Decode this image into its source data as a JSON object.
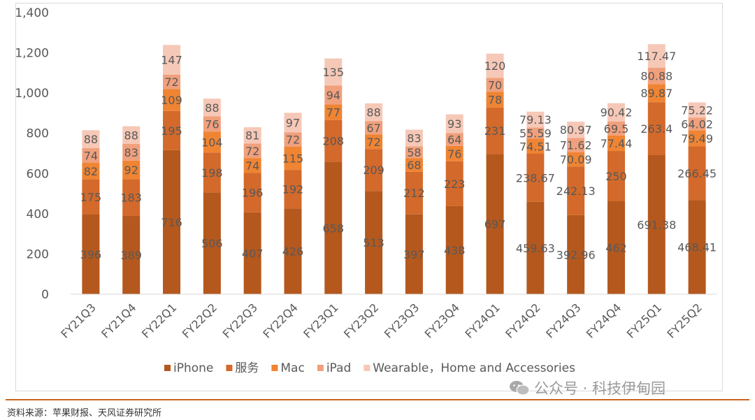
{
  "chart_data": {
    "type": "bar",
    "stacked": true,
    "categories": [
      "FY21Q3",
      "FY21Q4",
      "FY22Q1",
      "FY22Q2",
      "FY22Q3",
      "FY22Q4",
      "FY23Q1",
      "FY23Q2",
      "FY23Q3",
      "FY23Q4",
      "FY24Q1",
      "FY24Q2",
      "FY24Q3",
      "FY24Q4",
      "FY25Q1",
      "FY25Q2"
    ],
    "series": [
      {
        "name": "iPhone",
        "color": "#b4581d",
        "values": [
          396,
          389,
          716,
          506,
          407,
          426,
          658,
          513,
          397,
          438,
          697,
          459.63,
          392.96,
          462,
          691.38,
          468.41
        ],
        "labels": [
          "396",
          "389",
          "716",
          "506",
          "407",
          "426",
          "658",
          "513",
          "397",
          "438",
          "697",
          "459.63",
          "392.96",
          "462",
          "691.38",
          "468.41"
        ]
      },
      {
        "name": "服务",
        "color": "#d3692a",
        "values": [
          175,
          183,
          195,
          198,
          196,
          192,
          208,
          209,
          212,
          223,
          231,
          238.67,
          242.13,
          250,
          263.4,
          266.45
        ],
        "labels": [
          "175",
          "183",
          "195",
          "198",
          "196",
          "192",
          "208",
          "209",
          "212",
          "223",
          "231",
          "238.67",
          "242.13",
          "250",
          "263.4",
          "266.45"
        ]
      },
      {
        "name": "Mac",
        "color": "#ef8433",
        "values": [
          82,
          92,
          109,
          104,
          74,
          115,
          77,
          72,
          68,
          76,
          78,
          74.51,
          70.09,
          77.44,
          89.87,
          79.49
        ],
        "labels": [
          "82",
          "92",
          "109",
          "104",
          "74",
          "115",
          "77",
          "72",
          "68",
          "76",
          "78",
          "74.51",
          "70.09",
          "77.44",
          "89.87",
          "79.49"
        ]
      },
      {
        "name": "iPad",
        "color": "#f0a07c",
        "values": [
          74,
          83,
          72,
          76,
          72,
          72,
          94,
          67,
          58,
          64,
          70,
          55.59,
          71.62,
          69.5,
          80.88,
          64.02
        ],
        "labels": [
          "74",
          "83",
          "72",
          "76",
          "72",
          "72",
          "94",
          "67",
          "58",
          "64",
          "70",
          "55.59",
          "71.62",
          "69.5",
          "80.88",
          "64.02"
        ]
      },
      {
        "name": "Wearable，Home and Accessories",
        "color": "#f6c8b7",
        "values": [
          88,
          88,
          147,
          88,
          81,
          97,
          135,
          88,
          83,
          93,
          120,
          79.13,
          80.97,
          90.42,
          117.47,
          75.22
        ],
        "labels": [
          "88",
          "88",
          "147",
          "88",
          "81",
          "97",
          "135",
          "88",
          "83",
          "93",
          "120",
          "79.13",
          "80.97",
          "90.42",
          "117.47",
          "75.22"
        ]
      }
    ],
    "ylim": [
      0,
      1400
    ],
    "yticks": [
      "0",
      "200",
      "400",
      "600",
      "800",
      "1,000",
      "1,200",
      "1,400"
    ],
    "ytick_values": [
      0,
      200,
      400,
      600,
      800,
      1000,
      1200,
      1400
    ],
    "legend_position": "bottom",
    "grid": false
  },
  "footer": {
    "source": "资料来源：苹果财报、天风证券研究所",
    "watermark": "公众号 · 科技伊甸园"
  },
  "colors": {
    "rule": "#c8651d",
    "label_text": "#595959",
    "axis_text": "#595959"
  }
}
